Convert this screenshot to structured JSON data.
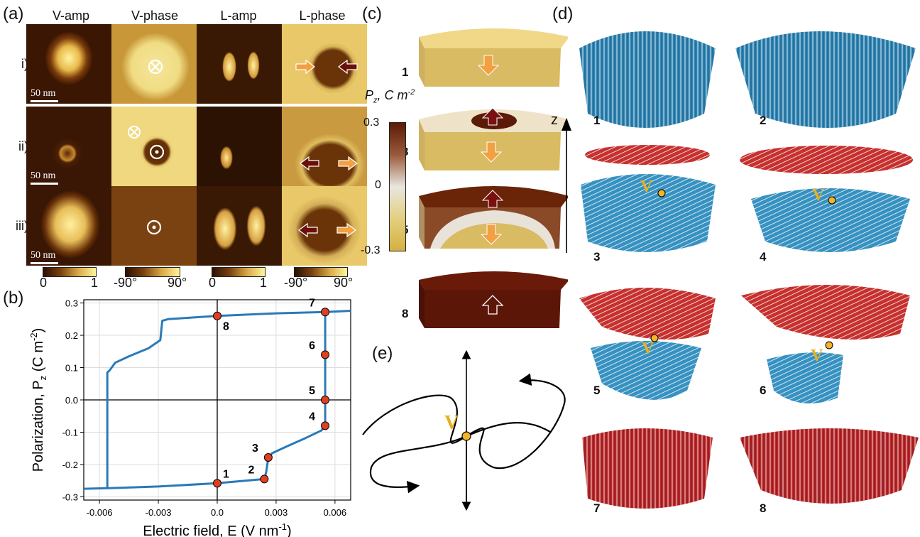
{
  "panel_a": {
    "label": "(a)",
    "headers": [
      "V-amp",
      "V-phase",
      "L-amp",
      "L-phase"
    ],
    "rows": [
      "i)",
      "ii)",
      "iii)"
    ],
    "scalebar": "50 nm",
    "amp_cbar": {
      "min": "0",
      "max": "1"
    },
    "phase_cbar": {
      "min": "-90°",
      "max": "90°"
    }
  },
  "panel_b": {
    "label": "(b)"
  },
  "panel_c": {
    "label": "(c)",
    "cbar_label": "P",
    "cbar_label_sub": "z",
    "cbar_label_unit": ", C m",
    "cbar_label_exp": "-2",
    "cbar_ticks": [
      "0.3",
      "0",
      "-0.3"
    ],
    "slices": [
      "1",
      "3",
      "5",
      "8"
    ]
  },
  "panel_d": {
    "label": "(d)",
    "axis": "z",
    "vortex_letter": "V",
    "frames": [
      "1",
      "2",
      "3",
      "4",
      "5",
      "6",
      "7",
      "8"
    ]
  },
  "panel_e": {
    "label": "(e)",
    "vortex_letter": "V"
  },
  "chart_data": {
    "type": "line",
    "xlabel": "Electric field, E (V nm",
    "xlabel_exp": "-1",
    "xlabel_end": ")",
    "ylabel": "Polarization, P",
    "ylabel_sub": "z",
    "ylabel_unit": " (C m",
    "ylabel_exp": "-2",
    "ylabel_end": ")",
    "xlim": [
      -0.0068,
      0.0068
    ],
    "ylim": [
      -0.31,
      0.31
    ],
    "xticks": [
      -0.006,
      -0.003,
      0.0,
      0.003,
      0.006
    ],
    "xtick_labels": [
      "-0.006",
      "-0.003",
      "0.0",
      "0.003",
      "0.006"
    ],
    "yticks": [
      -0.3,
      -0.2,
      -0.1,
      0.0,
      0.1,
      0.2,
      0.3
    ],
    "ytick_labels": [
      "-0.3",
      "-0.2",
      "-0.1",
      "0.0",
      "0.1",
      "0.2",
      "0.3"
    ],
    "grid": true,
    "series": [
      {
        "color": "#2a7ab8",
        "x": [
          -0.0068,
          -0.0055,
          -0.003,
          0.0,
          0.0024,
          0.0025,
          0.0026,
          0.0028,
          0.0035,
          0.0045,
          0.0053,
          0.0055,
          0.0055,
          0.0055,
          0.0055,
          0.0055,
          0.0055,
          0.0062,
          0.0068
        ],
        "y": [
          -0.275,
          -0.273,
          -0.268,
          -0.258,
          -0.245,
          -0.222,
          -0.18,
          -0.165,
          -0.145,
          -0.118,
          -0.095,
          -0.08,
          -0.05,
          0.0,
          0.09,
          0.14,
          0.272,
          0.274,
          0.276
        ]
      },
      {
        "color": "#2a7ab8",
        "x": [
          0.0055,
          0.003,
          0.0,
          -0.0025,
          -0.0028,
          -0.0029,
          -0.0035,
          -0.0045,
          -0.0052,
          -0.0055,
          -0.0056,
          -0.0056
        ],
        "y": [
          0.272,
          0.268,
          0.26,
          0.25,
          0.245,
          0.185,
          0.16,
          0.135,
          0.115,
          0.09,
          0.085,
          -0.273
        ]
      }
    ],
    "points": [
      {
        "label": "1",
        "x": 0.0,
        "y": -0.258
      },
      {
        "label": "2",
        "x": 0.0024,
        "y": -0.245
      },
      {
        "label": "3",
        "x": 0.0026,
        "y": -0.178
      },
      {
        "label": "4",
        "x": 0.0055,
        "y": -0.08
      },
      {
        "label": "5",
        "x": 0.0055,
        "y": 0.0
      },
      {
        "label": "6",
        "x": 0.0055,
        "y": 0.14
      },
      {
        "label": "7",
        "x": 0.0055,
        "y": 0.272
      },
      {
        "label": "8",
        "x": 0.0,
        "y": 0.26
      }
    ],
    "point_color": "#e04020"
  },
  "colors": {
    "gold": "#e8c060",
    "dark_brown": "#5c1a08",
    "blue": "#2f86b5",
    "red": "#c0282a",
    "orange_arrow": "#f3a040"
  }
}
